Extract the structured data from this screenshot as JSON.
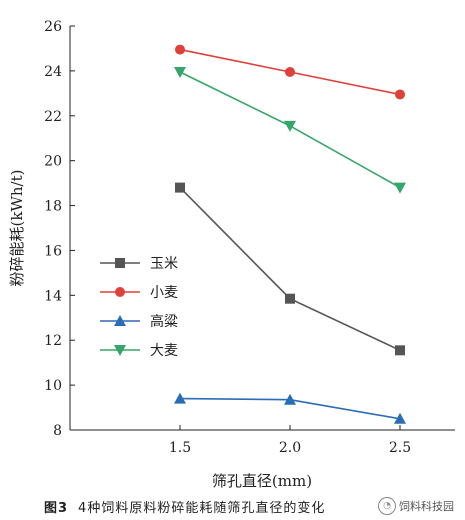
{
  "chart_data": {
    "type": "line",
    "xlabel": "筛孔直径(mm)",
    "ylabel": "粉碎能耗(kWh/t)",
    "x": [
      1.5,
      2.0,
      2.5
    ],
    "xticks": [
      "1.5",
      "2.0",
      "2.5"
    ],
    "xlim": [
      1.0,
      2.75
    ],
    "ylim": [
      8,
      26
    ],
    "yticks": [
      "8",
      "10",
      "12",
      "14",
      "16",
      "18",
      "20",
      "22",
      "24",
      "26"
    ],
    "grid": false,
    "legend_position": "lower-left",
    "series": [
      {
        "name": "玉米",
        "values": [
          18.8,
          13.85,
          11.55
        ],
        "color": "#555555",
        "marker": "square"
      },
      {
        "name": "小麦",
        "values": [
          24.95,
          23.95,
          22.95
        ],
        "color": "#e0403a",
        "marker": "circle"
      },
      {
        "name": "高粱",
        "values": [
          9.4,
          9.35,
          8.5
        ],
        "color": "#2a6db5",
        "marker": "triangle-up"
      },
      {
        "name": "大麦",
        "values": [
          23.95,
          21.55,
          18.8
        ],
        "color": "#35a66a",
        "marker": "triangle-down"
      }
    ]
  },
  "caption": {
    "figure_label": "图3",
    "text": "4种饲料原料粉碎能耗随筛孔直径的变化"
  },
  "watermark": {
    "text": "饲料科技园",
    "icon": "wechat-icon"
  }
}
